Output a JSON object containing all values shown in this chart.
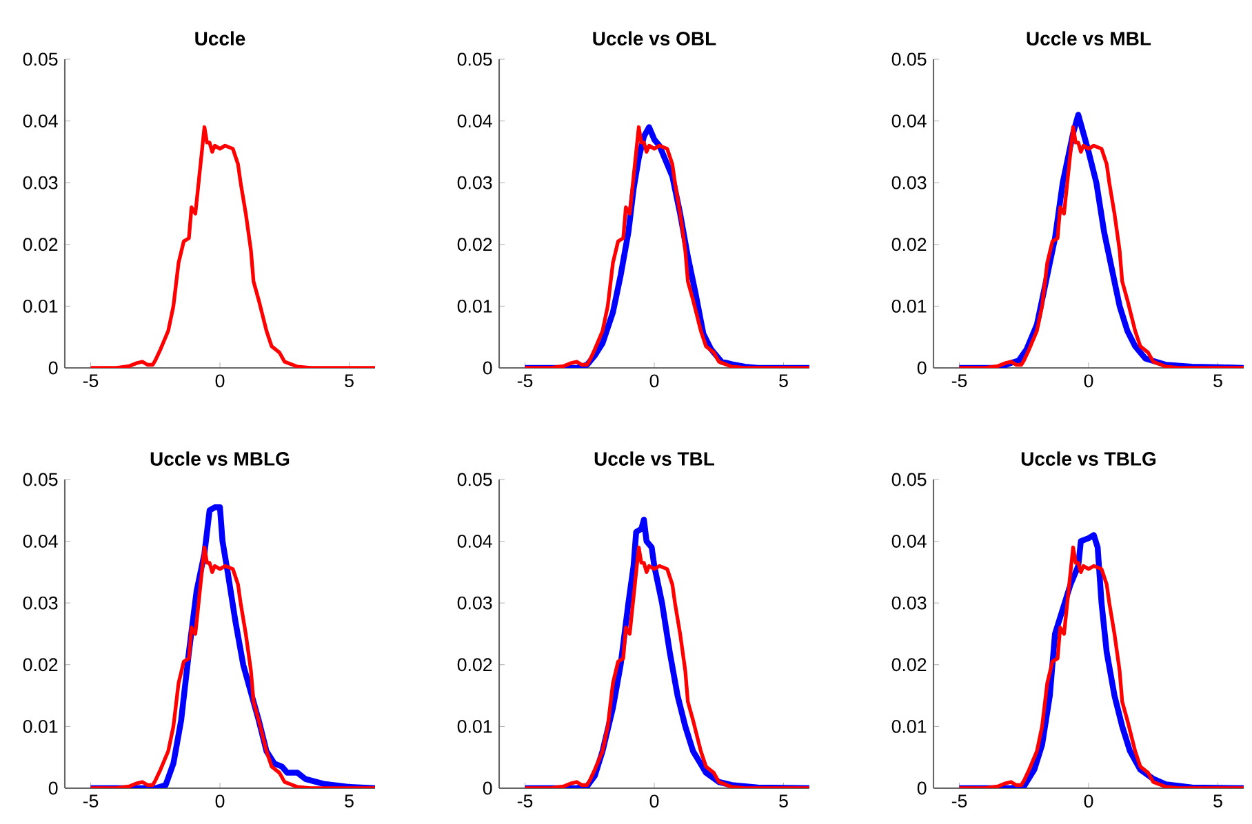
{
  "chart_data": [
    {
      "type": "line",
      "title": "Uccle",
      "xlim": [
        -6,
        6
      ],
      "xticks": [
        -5,
        0,
        5
      ],
      "ylim": [
        0,
        0.05
      ],
      "yticks": [
        0,
        0.01,
        0.02,
        0.03,
        0.04,
        0.05
      ],
      "series": [
        {
          "color": "#ff0000",
          "x": [
            -5,
            -4,
            -3.5,
            -3.2,
            -3.0,
            -2.8,
            -2.6,
            -2.5,
            -2.3,
            -2.0,
            -1.8,
            -1.6,
            -1.4,
            -1.2,
            -1.1,
            -0.95,
            -0.8,
            -0.6,
            -0.5,
            -0.4,
            -0.3,
            -0.2,
            0,
            0.2,
            0.5,
            0.7,
            0.8,
            1.0,
            1.2,
            1.3,
            1.5,
            1.8,
            2.0,
            2.3,
            2.5,
            3.0,
            3.5,
            6
          ],
          "values": [
            0,
            0,
            0.0003,
            0.0008,
            0.001,
            0.0005,
            0.0005,
            0.0012,
            0.003,
            0.006,
            0.01,
            0.017,
            0.0205,
            0.021,
            0.026,
            0.025,
            0.031,
            0.039,
            0.0365,
            0.0365,
            0.035,
            0.036,
            0.0355,
            0.036,
            0.0355,
            0.033,
            0.03,
            0.025,
            0.019,
            0.014,
            0.011,
            0.006,
            0.0035,
            0.0025,
            0.001,
            0.0002,
            0,
            0
          ]
        }
      ]
    },
    {
      "type": "line",
      "title": "Uccle vs OBL",
      "xlim": [
        -6,
        6
      ],
      "xticks": [
        -5,
        0,
        5
      ],
      "ylim": [
        0,
        0.05
      ],
      "yticks": [
        0,
        0.01,
        0.02,
        0.03,
        0.04,
        0.05
      ],
      "series": [
        {
          "color": "#0000ff",
          "x": [
            -5,
            -3,
            -2.6,
            -2.3,
            -2,
            -1.6,
            -1.3,
            -1.0,
            -0.8,
            -0.6,
            -0.4,
            -0.2,
            0,
            0.2,
            0.4,
            0.7,
            1.0,
            1.3,
            1.6,
            1.9,
            2.2,
            2.6,
            3,
            3.5,
            4,
            6
          ],
          "values": [
            0,
            0,
            0.0005,
            0.002,
            0.004,
            0.009,
            0.015,
            0.022,
            0.029,
            0.034,
            0.0375,
            0.039,
            0.037,
            0.036,
            0.034,
            0.031,
            0.025,
            0.018,
            0.012,
            0.0055,
            0.003,
            0.001,
            0.0006,
            0.0002,
            0,
            0
          ]
        },
        {
          "color": "#ff0000",
          "x": [
            -5,
            -4,
            -3.5,
            -3.2,
            -3.0,
            -2.8,
            -2.6,
            -2.5,
            -2.3,
            -2.0,
            -1.8,
            -1.6,
            -1.4,
            -1.2,
            -1.1,
            -0.95,
            -0.8,
            -0.6,
            -0.5,
            -0.4,
            -0.3,
            -0.2,
            0,
            0.2,
            0.5,
            0.7,
            0.8,
            1.0,
            1.2,
            1.3,
            1.5,
            1.8,
            2.0,
            2.3,
            2.5,
            3.0,
            3.5,
            6
          ],
          "values": [
            0,
            0,
            0.0003,
            0.0008,
            0.001,
            0.0005,
            0.0005,
            0.0012,
            0.003,
            0.006,
            0.01,
            0.017,
            0.0205,
            0.021,
            0.026,
            0.025,
            0.031,
            0.039,
            0.0365,
            0.0365,
            0.035,
            0.036,
            0.0355,
            0.036,
            0.0355,
            0.033,
            0.03,
            0.025,
            0.019,
            0.014,
            0.011,
            0.006,
            0.0035,
            0.0025,
            0.001,
            0.0002,
            0,
            0
          ]
        }
      ]
    },
    {
      "type": "line",
      "title": "Uccle vs MBL",
      "xlim": [
        -6,
        6
      ],
      "xticks": [
        -5,
        0,
        5
      ],
      "ylim": [
        0,
        0.05
      ],
      "yticks": [
        0,
        0.01,
        0.02,
        0.03,
        0.04,
        0.05
      ],
      "series": [
        {
          "color": "#0000ff",
          "x": [
            -5,
            -3.5,
            -3,
            -2.7,
            -2.4,
            -2,
            -1.6,
            -1.3,
            -1.0,
            -0.8,
            -0.6,
            -0.4,
            -0.2,
            0,
            0.3,
            0.6,
            0.9,
            1.2,
            1.5,
            1.8,
            2.2,
            3,
            4,
            5,
            6
          ],
          "values": [
            0,
            0,
            0.0008,
            0.0012,
            0.003,
            0.007,
            0.015,
            0.021,
            0.03,
            0.034,
            0.038,
            0.041,
            0.038,
            0.035,
            0.03,
            0.022,
            0.016,
            0.01,
            0.006,
            0.0035,
            0.0015,
            0.0005,
            0.0002,
            0.0001,
            0
          ]
        },
        {
          "color": "#ff0000",
          "x": [
            -5,
            -4,
            -3.5,
            -3.2,
            -3.0,
            -2.8,
            -2.6,
            -2.5,
            -2.3,
            -2.0,
            -1.8,
            -1.6,
            -1.4,
            -1.2,
            -1.1,
            -0.95,
            -0.8,
            -0.6,
            -0.5,
            -0.4,
            -0.3,
            -0.2,
            0,
            0.2,
            0.5,
            0.7,
            0.8,
            1.0,
            1.2,
            1.3,
            1.5,
            1.8,
            2.0,
            2.3,
            2.5,
            3.0,
            3.5,
            6
          ],
          "values": [
            0,
            0,
            0.0003,
            0.0008,
            0.001,
            0.0005,
            0.0005,
            0.0012,
            0.003,
            0.006,
            0.01,
            0.017,
            0.0205,
            0.021,
            0.026,
            0.025,
            0.031,
            0.039,
            0.0365,
            0.0365,
            0.035,
            0.036,
            0.0355,
            0.036,
            0.0355,
            0.033,
            0.03,
            0.025,
            0.019,
            0.014,
            0.011,
            0.006,
            0.0035,
            0.0025,
            0.001,
            0.0002,
            0,
            0
          ]
        }
      ]
    },
    {
      "type": "line",
      "title": "Uccle vs MBLG",
      "xlim": [
        -6,
        6
      ],
      "xticks": [
        -5,
        0,
        5
      ],
      "ylim": [
        0,
        0.05
      ],
      "yticks": [
        0,
        0.01,
        0.02,
        0.03,
        0.04,
        0.05
      ],
      "series": [
        {
          "color": "#0000ff",
          "x": [
            -5,
            -2.5,
            -2.1,
            -1.8,
            -1.5,
            -1.2,
            -0.9,
            -0.6,
            -0.4,
            -0.2,
            0,
            0.1,
            0.3,
            0.6,
            0.9,
            1.3,
            1.5,
            1.8,
            2.1,
            2.4,
            2.6,
            3,
            3.3,
            4,
            5,
            6
          ],
          "values": [
            0,
            0,
            0.0005,
            0.004,
            0.011,
            0.022,
            0.032,
            0.038,
            0.045,
            0.0455,
            0.0455,
            0.04,
            0.035,
            0.027,
            0.02,
            0.014,
            0.011,
            0.006,
            0.004,
            0.0035,
            0.0025,
            0.0025,
            0.0015,
            0.0007,
            0.0002,
            0
          ]
        },
        {
          "color": "#ff0000",
          "x": [
            -5,
            -4,
            -3.5,
            -3.2,
            -3.0,
            -2.8,
            -2.6,
            -2.5,
            -2.3,
            -2.0,
            -1.8,
            -1.6,
            -1.4,
            -1.2,
            -1.1,
            -0.95,
            -0.8,
            -0.6,
            -0.5,
            -0.4,
            -0.3,
            -0.2,
            0,
            0.2,
            0.5,
            0.7,
            0.8,
            1.0,
            1.2,
            1.3,
            1.5,
            1.8,
            2.0,
            2.3,
            2.5,
            3.0,
            3.5,
            6
          ],
          "values": [
            0,
            0,
            0.0003,
            0.0008,
            0.001,
            0.0005,
            0.0005,
            0.0012,
            0.003,
            0.006,
            0.01,
            0.017,
            0.0205,
            0.021,
            0.026,
            0.025,
            0.031,
            0.039,
            0.0365,
            0.0365,
            0.035,
            0.036,
            0.0355,
            0.036,
            0.0355,
            0.033,
            0.03,
            0.025,
            0.019,
            0.014,
            0.011,
            0.006,
            0.0035,
            0.0025,
            0.001,
            0.0002,
            0,
            0
          ]
        }
      ]
    },
    {
      "type": "line",
      "title": "Uccle vs TBL",
      "xlim": [
        -6,
        6
      ],
      "xticks": [
        -5,
        0,
        5
      ],
      "ylim": [
        0,
        0.05
      ],
      "yticks": [
        0,
        0.01,
        0.02,
        0.03,
        0.04,
        0.05
      ],
      "series": [
        {
          "color": "#0000ff",
          "x": [
            -5,
            -3,
            -2.6,
            -2.3,
            -2,
            -1.6,
            -1.3,
            -1.0,
            -0.8,
            -0.7,
            -0.5,
            -0.4,
            -0.3,
            -0.1,
            0,
            0.3,
            0.6,
            0.9,
            1.2,
            1.5,
            2.0,
            2.5,
            3,
            4,
            6
          ],
          "values": [
            0,
            0,
            0.0003,
            0.002,
            0.006,
            0.013,
            0.02,
            0.03,
            0.036,
            0.0415,
            0.042,
            0.0435,
            0.04,
            0.039,
            0.036,
            0.03,
            0.022,
            0.015,
            0.01,
            0.006,
            0.0025,
            0.001,
            0.0005,
            0.0001,
            0
          ]
        },
        {
          "color": "#ff0000",
          "x": [
            -5,
            -4,
            -3.5,
            -3.2,
            -3.0,
            -2.8,
            -2.6,
            -2.5,
            -2.3,
            -2.0,
            -1.8,
            -1.6,
            -1.4,
            -1.2,
            -1.1,
            -0.95,
            -0.8,
            -0.6,
            -0.5,
            -0.4,
            -0.3,
            -0.2,
            0,
            0.2,
            0.5,
            0.7,
            0.8,
            1.0,
            1.2,
            1.3,
            1.5,
            1.8,
            2.0,
            2.3,
            2.5,
            3.0,
            3.5,
            6
          ],
          "values": [
            0,
            0,
            0.0003,
            0.0008,
            0.001,
            0.0005,
            0.0005,
            0.0012,
            0.003,
            0.006,
            0.01,
            0.017,
            0.0205,
            0.021,
            0.026,
            0.025,
            0.031,
            0.039,
            0.0365,
            0.0365,
            0.035,
            0.036,
            0.0355,
            0.036,
            0.0355,
            0.033,
            0.03,
            0.025,
            0.019,
            0.014,
            0.011,
            0.006,
            0.0035,
            0.0025,
            0.001,
            0.0002,
            0,
            0
          ]
        }
      ]
    },
    {
      "type": "line",
      "title": "Uccle vs TBLG",
      "xlim": [
        -6,
        6
      ],
      "xticks": [
        -5,
        0,
        5
      ],
      "ylim": [
        0,
        0.05
      ],
      "yticks": [
        0,
        0.01,
        0.02,
        0.03,
        0.04,
        0.05
      ],
      "series": [
        {
          "color": "#0000ff",
          "x": [
            -5,
            -3,
            -2.5,
            -2.1,
            -1.8,
            -1.5,
            -1.3,
            -1.0,
            -0.7,
            -0.4,
            -0.3,
            0,
            0.2,
            0.35,
            0.5,
            0.7,
            1.0,
            1.3,
            1.6,
            2.0,
            2.5,
            3,
            4,
            6
          ],
          "values": [
            0,
            0,
            0.0003,
            0.003,
            0.007,
            0.015,
            0.025,
            0.029,
            0.033,
            0.036,
            0.04,
            0.0405,
            0.041,
            0.039,
            0.03,
            0.022,
            0.015,
            0.01,
            0.006,
            0.003,
            0.0015,
            0.0006,
            0.0001,
            0
          ]
        },
        {
          "color": "#ff0000",
          "x": [
            -5,
            -4,
            -3.5,
            -3.2,
            -3.0,
            -2.8,
            -2.6,
            -2.5,
            -2.3,
            -2.0,
            -1.8,
            -1.6,
            -1.4,
            -1.2,
            -1.1,
            -0.95,
            -0.8,
            -0.6,
            -0.5,
            -0.4,
            -0.3,
            -0.2,
            0,
            0.2,
            0.5,
            0.7,
            0.8,
            1.0,
            1.2,
            1.3,
            1.5,
            1.8,
            2.0,
            2.3,
            2.5,
            3.0,
            3.5,
            6
          ],
          "values": [
            0,
            0,
            0.0003,
            0.0008,
            0.001,
            0.0005,
            0.0005,
            0.0012,
            0.003,
            0.006,
            0.01,
            0.017,
            0.0205,
            0.021,
            0.026,
            0.025,
            0.031,
            0.039,
            0.0365,
            0.0365,
            0.035,
            0.036,
            0.0355,
            0.036,
            0.0355,
            0.033,
            0.03,
            0.025,
            0.019,
            0.014,
            0.011,
            0.006,
            0.0035,
            0.0025,
            0.001,
            0.0002,
            0,
            0
          ]
        }
      ]
    }
  ]
}
